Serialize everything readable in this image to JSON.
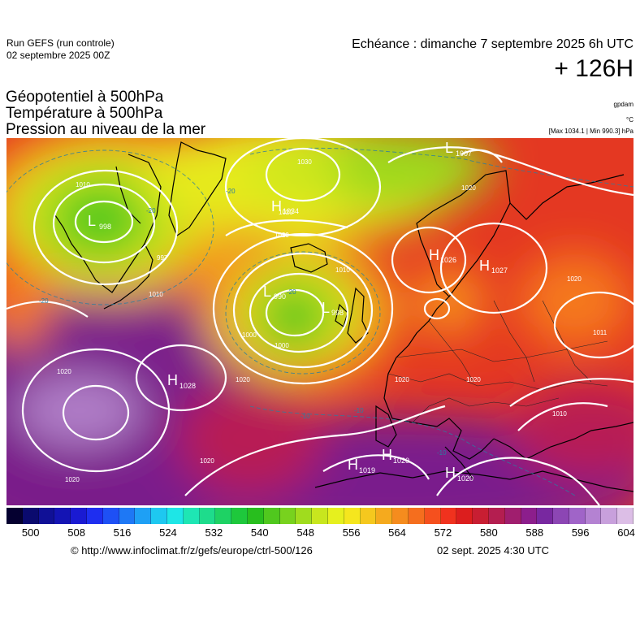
{
  "header": {
    "run_title": "Run GEFS (run controle)",
    "run_date": "02 septembre 2025 00Z",
    "valid_time": "Echéance : dimanche 7 septembre 2025 6h UTC",
    "lead_time": "+ 126H"
  },
  "parameters": {
    "line1": "Géopotentiel à 500hPa",
    "line2": "Température à 500hPa",
    "line3": "Pression au niveau de la mer"
  },
  "units": {
    "geopotential": "gpdam",
    "temperature": "°C",
    "pressure_range": "[Max 1034.1 | Min 990.3] hPa"
  },
  "pressure_centers": [
    {
      "type": "L",
      "value": "998"
    },
    {
      "type": "L",
      "value": "990"
    },
    {
      "type": "L",
      "value": "998"
    },
    {
      "type": "L",
      "value": "1007"
    },
    {
      "type": "H",
      "value": "1034"
    },
    {
      "type": "H",
      "value": "1028"
    },
    {
      "type": "H",
      "value": "1026"
    },
    {
      "type": "H",
      "value": "1027"
    },
    {
      "type": "H",
      "value": "1019"
    },
    {
      "type": "H",
      "value": "1020"
    },
    {
      "type": "H",
      "value": "1020"
    }
  ],
  "isobar_labels": [
    "1010",
    "1010",
    "997",
    "1020",
    "1030",
    "1020",
    "1010",
    "1000",
    "1020",
    "1020",
    "1020",
    "1020",
    "1020",
    "1011",
    "1010",
    "1020",
    "1020",
    "1000",
    "1020"
  ],
  "temperature_labels": [
    "-20",
    "-20",
    "-20",
    "-20",
    "-10",
    "-10",
    "-10"
  ],
  "colorbar": {
    "colors": [
      "#050030",
      "#0a0a6e",
      "#101096",
      "#1414b4",
      "#1a1ad2",
      "#1e2ef0",
      "#1e50f5",
      "#1e78f5",
      "#1ea0f5",
      "#1ec8f0",
      "#1ee6e6",
      "#1ee6b4",
      "#1edc8c",
      "#1ed264",
      "#1ec83c",
      "#28be1e",
      "#50c81e",
      "#78d21e",
      "#a0dc1e",
      "#c8e61e",
      "#e6f01e",
      "#f5e61e",
      "#f5c81e",
      "#f5aa1e",
      "#f58c1e",
      "#f56e1e",
      "#f5501e",
      "#f0321e",
      "#dc1e1e",
      "#c81e32",
      "#b41e50",
      "#a01e6e",
      "#8c1e8c",
      "#7828a0",
      "#8c46b4",
      "#a064c8",
      "#b482d2",
      "#c8a0dc",
      "#dcbee6"
    ],
    "tick_labels": [
      "500",
      "508",
      "516",
      "524",
      "532",
      "540",
      "548",
      "556",
      "564",
      "572",
      "580",
      "588",
      "596",
      "604"
    ]
  },
  "footer": {
    "url": "© http://www.infoclimat.fr/z/gefs/europe/ctrl-500/126",
    "issued": "02 sept. 2025  4:30 UTC"
  }
}
